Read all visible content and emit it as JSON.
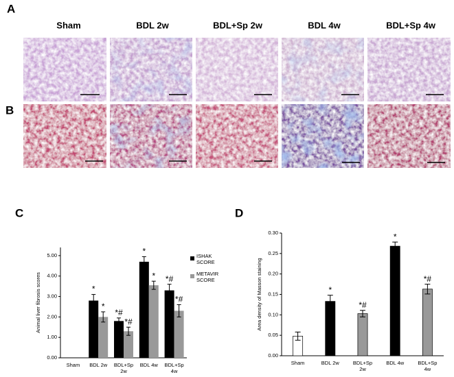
{
  "panels": {
    "labels": [
      "A",
      "B",
      "C",
      "D"
    ],
    "columns": [
      "Sham",
      "BDL 2w",
      "BDL+Sp 2w",
      "BDL 4w",
      "BDL+Sp 4w"
    ]
  },
  "chart_data": [
    {
      "type": "grouped-bar",
      "ylabel": "Animal liver fibrosis scores",
      "categories": [
        "Sham",
        "BDL 2w",
        "BDL+Sp 2w",
        "BDL 4w",
        "BDL+Sp 4w"
      ],
      "series": [
        {
          "name": "ISHAK SCORE",
          "color": "#000000",
          "values": [
            0,
            2.8,
            1.8,
            4.7,
            3.3
          ],
          "errors": [
            0,
            0.3,
            0.15,
            0.25,
            0.3
          ],
          "annotations": [
            null,
            "*",
            "*#",
            "*",
            "*#"
          ]
        },
        {
          "name": "METAVIR SCORE",
          "color": "#999999",
          "values": [
            0,
            2.0,
            1.3,
            3.55,
            2.3
          ],
          "errors": [
            0,
            0.25,
            0.2,
            0.2,
            0.3
          ],
          "annotations": [
            null,
            "*",
            "*#",
            "*",
            "*#"
          ]
        }
      ],
      "ylim": [
        0,
        5.4
      ],
      "yticks": [
        {
          "value": 0,
          "label": "0.00"
        },
        {
          "value": 1,
          "label": "1.00"
        },
        {
          "value": 2,
          "label": "2.00"
        },
        {
          "value": 3,
          "label": "3.00"
        },
        {
          "value": 4,
          "label": "4.00"
        },
        {
          "value": 5,
          "label": "5.00"
        }
      ],
      "legend": "right"
    },
    {
      "type": "bar",
      "ylabel": "Area density of Masson staining",
      "categories": [
        "Sham",
        "BDL 2w",
        "BDL+Sp 2w",
        "BDL 4w",
        "BDL+Sp 4w"
      ],
      "values": [
        0.048,
        0.133,
        0.103,
        0.268,
        0.163
      ],
      "errors": [
        0.01,
        0.015,
        0.008,
        0.01,
        0.012
      ],
      "colors": [
        "#ffffff",
        "#000000",
        "#999999",
        "#000000",
        "#999999"
      ],
      "annotations": [
        null,
        "*",
        "*#",
        "*",
        "*#"
      ],
      "ylim": [
        0,
        0.3
      ],
      "yticks": [
        {
          "value": 0,
          "label": "0.00"
        },
        {
          "value": 0.05,
          "label": "0.05"
        },
        {
          "value": 0.1,
          "label": "0.10"
        },
        {
          "value": 0.15,
          "label": "0.15"
        },
        {
          "value": 0.2,
          "label": "0.20"
        },
        {
          "value": 0.25,
          "label": "0.25"
        },
        {
          "value": 0.3,
          "label": "0.30"
        }
      ]
    }
  ]
}
